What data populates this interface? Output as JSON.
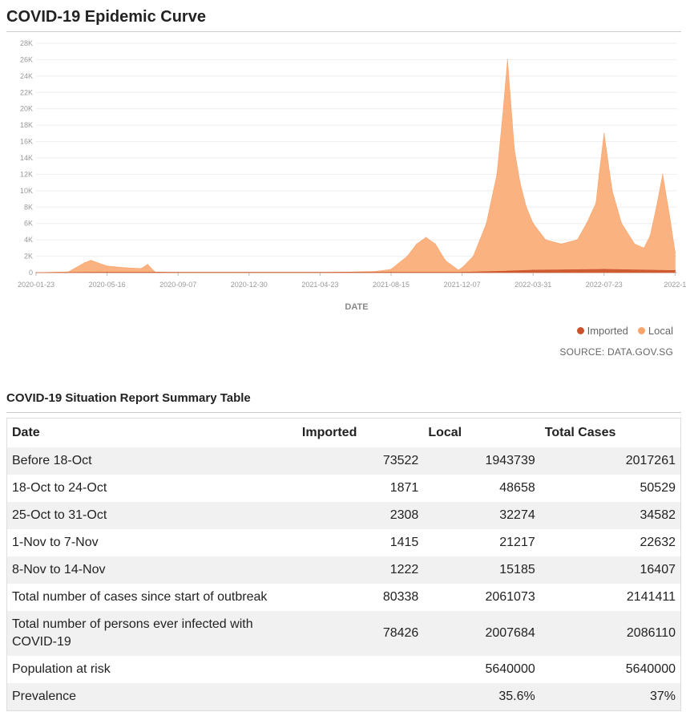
{
  "page_title": "COVID-19 Epidemic Curve",
  "chart_data": {
    "type": "bar",
    "title": "COVID-19 Epidemic Curve",
    "xlabel": "DATE",
    "ylabel": "",
    "ylim": [
      0,
      28000
    ],
    "y_ticks": [
      "0",
      "2K",
      "4K",
      "6K",
      "8K",
      "10K",
      "12K",
      "14K",
      "16K",
      "18K",
      "20K",
      "22K",
      "24K",
      "26K",
      "28K"
    ],
    "x_ticks": [
      "2020-01-23",
      "2020-05-16",
      "2020-09-07",
      "2020-12-30",
      "2021-04-23",
      "2021-08-15",
      "2021-12-07",
      "2022-03-31",
      "2022-07-23",
      "2022-1"
    ],
    "legend": [
      "Imported",
      "Local"
    ],
    "legend_position": "bottom-right",
    "series": [
      {
        "name": "Local",
        "color": "#f9a46b",
        "x": [
          "2020-01-23",
          "2020-03-15",
          "2020-04-10",
          "2020-04-20",
          "2020-05-16",
          "2020-06-15",
          "2020-07-10",
          "2020-07-20",
          "2020-08-01",
          "2020-09-07",
          "2020-12-30",
          "2021-04-23",
          "2021-07-20",
          "2021-08-15",
          "2021-09-10",
          "2021-09-25",
          "2021-10-10",
          "2021-10-25",
          "2021-11-10",
          "2021-12-01",
          "2021-12-07",
          "2021-12-25",
          "2022-01-15",
          "2022-02-01",
          "2022-02-10",
          "2022-02-18",
          "2022-02-22",
          "2022-03-01",
          "2022-03-10",
          "2022-03-20",
          "2022-03-31",
          "2022-04-20",
          "2022-05-15",
          "2022-06-10",
          "2022-06-25",
          "2022-07-10",
          "2022-07-15",
          "2022-07-23",
          "2022-08-05",
          "2022-08-20",
          "2022-09-10",
          "2022-09-25",
          "2022-10-05",
          "2022-10-15",
          "2022-10-25",
          "2022-11-05",
          "2022-11-14"
        ],
        "values": [
          0,
          100,
          1200,
          1500,
          800,
          600,
          500,
          1000,
          80,
          0,
          0,
          0,
          150,
          400,
          2000,
          3500,
          4300,
          3500,
          1500,
          300,
          600,
          2000,
          6000,
          12000,
          19000,
          26000,
          22000,
          15000,
          11000,
          8000,
          6000,
          4000,
          3500,
          4000,
          6000,
          8500,
          12000,
          17000,
          10000,
          6000,
          3500,
          3000,
          4500,
          8000,
          12000,
          7000,
          2500
        ]
      },
      {
        "name": "Imported",
        "color": "#c9522b",
        "x": [
          "2020-01-23",
          "2020-05-16",
          "2021-08-15",
          "2021-12-07",
          "2022-02-18",
          "2022-03-31",
          "2022-07-23",
          "2022-11-14"
        ],
        "values": [
          0,
          50,
          50,
          50,
          200,
          300,
          400,
          250
        ]
      }
    ]
  },
  "source_label": "SOURCE: DATA.GOV.SG",
  "colors": {
    "local": "#f9a46b",
    "imported": "#c9522b"
  },
  "table": {
    "title": "COVID-19 Situation Report Summary Table",
    "headers": [
      "Date",
      "Imported",
      "Local",
      "Total Cases"
    ],
    "rows": [
      [
        "Before 18-Oct",
        "73522",
        "1943739",
        "2017261"
      ],
      [
        "18-Oct to 24-Oct",
        "1871",
        "48658",
        "50529"
      ],
      [
        "25-Oct to 31-Oct",
        "2308",
        "32274",
        "34582"
      ],
      [
        "1-Nov to 7-Nov",
        "1415",
        "21217",
        "22632"
      ],
      [
        "8-Nov to 14-Nov",
        "1222",
        "15185",
        "16407"
      ],
      [
        "Total number of cases since start of outbreak",
        "80338",
        "2061073",
        "2141411"
      ],
      [
        "Total number of persons ever infected with COVID-19",
        "78426",
        "2007684",
        "2086110"
      ],
      [
        "Population at risk",
        "",
        "5640000",
        "5640000"
      ],
      [
        "Prevalence",
        "",
        "35.6%",
        "37%"
      ]
    ]
  }
}
